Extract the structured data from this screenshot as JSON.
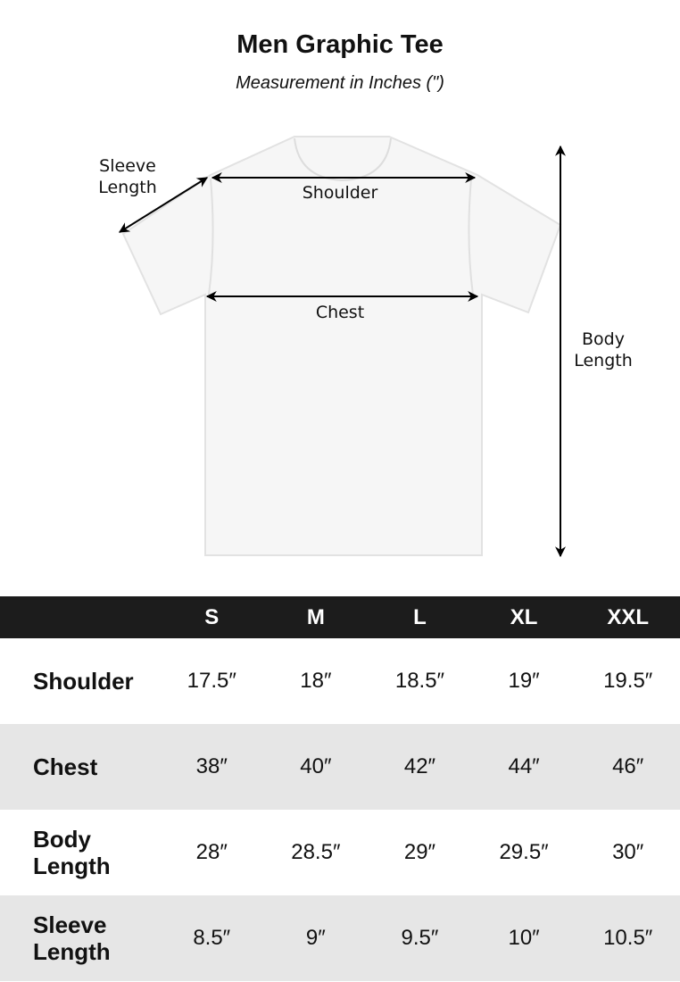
{
  "title": "Men Graphic Tee",
  "subtitle": "Measurement in Inches (\")",
  "diagram": {
    "sleeve_label": [
      "Sleeve",
      "Length"
    ],
    "shoulder_label": "Shoulder",
    "chest_label": "Chest",
    "body_label": [
      "Body",
      "Length"
    ]
  },
  "table": {
    "sizes": [
      "S",
      "M",
      "L",
      "XL",
      "XXL"
    ],
    "rows": [
      {
        "label": "Shoulder",
        "values": [
          "17.5″",
          "18″",
          "18.5″",
          "19″",
          "19.5″"
        ]
      },
      {
        "label": "Chest",
        "values": [
          "38″",
          "40″",
          "42″",
          "44″",
          "46″"
        ]
      },
      {
        "label": "Body Length",
        "values": [
          "28″",
          "28.5″",
          "29″",
          "29.5″",
          "30″"
        ]
      },
      {
        "label": "Sleeve Length",
        "values": [
          "8.5″",
          "9″",
          "9.5″",
          "10″",
          "10.5″"
        ]
      }
    ]
  },
  "colors": {
    "header_bg": "#1c1c1c",
    "alt_row": "#e6e6e6",
    "shirt": "#f6f6f6"
  }
}
